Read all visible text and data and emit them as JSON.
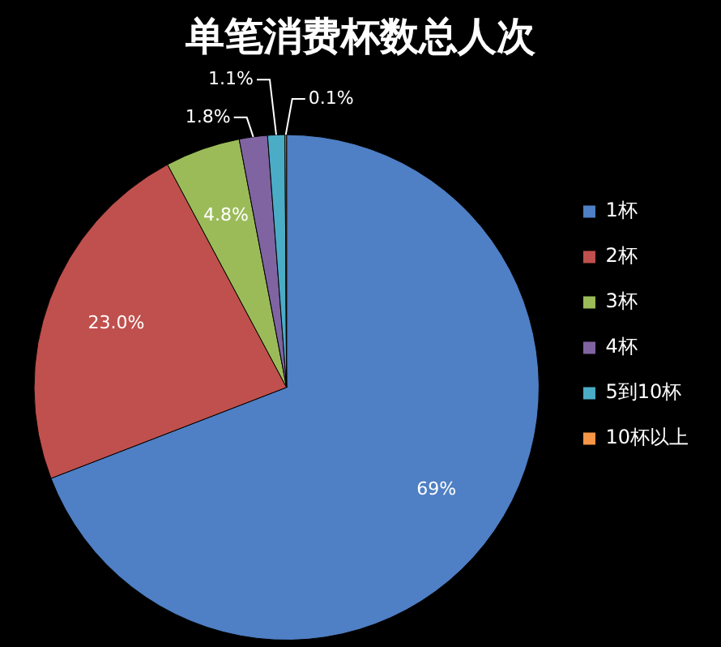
{
  "chart_data": {
    "type": "pie",
    "title": "单笔消费杯数总人次",
    "categories": [
      "1杯",
      "2杯",
      "3杯",
      "4杯",
      "5到10杯",
      "10杯以上"
    ],
    "values": [
      69,
      23.0,
      4.8,
      1.8,
      1.1,
      0.1
    ],
    "value_labels": [
      "69%",
      "23.0%",
      "4.8%",
      "1.8%",
      "1.1%",
      "0.1%"
    ],
    "colors": [
      "#4f7fc4",
      "#c0504d",
      "#9bbb59",
      "#8064a2",
      "#4bacc6",
      "#f79646"
    ],
    "legend": "right"
  }
}
